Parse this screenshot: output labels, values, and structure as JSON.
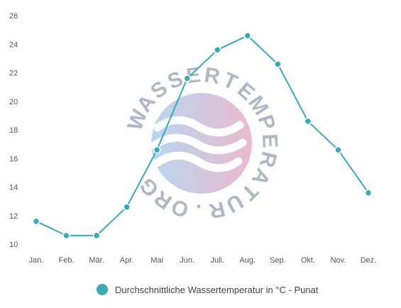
{
  "chart_data": {
    "type": "line",
    "categories": [
      "Jan.",
      "Feb.",
      "Mär.",
      "Apr.",
      "Mai",
      "Jun.",
      "Juli.",
      "Aug.",
      "Sep.",
      "Okt.",
      "Nov.",
      "Dez."
    ],
    "series": [
      {
        "name": "Durchschnittliche Wassertemperatur in °C - Punat",
        "values": [
          11.6,
          10.6,
          10.6,
          12.6,
          16.6,
          21.6,
          23.6,
          24.6,
          22.6,
          18.6,
          16.6,
          13.6
        ]
      }
    ],
    "ylim": [
      10,
      26
    ],
    "yticks": [
      10,
      12,
      14,
      16,
      18,
      20,
      22,
      24,
      26
    ],
    "grid": false,
    "legend_position": "bottom",
    "colors": {
      "series": "#3aa9b4"
    }
  },
  "watermark": {
    "text": "WASSERTEMPERATUR.ORG",
    "colors": {
      "left": "#b9d6ee",
      "right": "#e9bad0",
      "letters": "#b0b7c6"
    }
  }
}
